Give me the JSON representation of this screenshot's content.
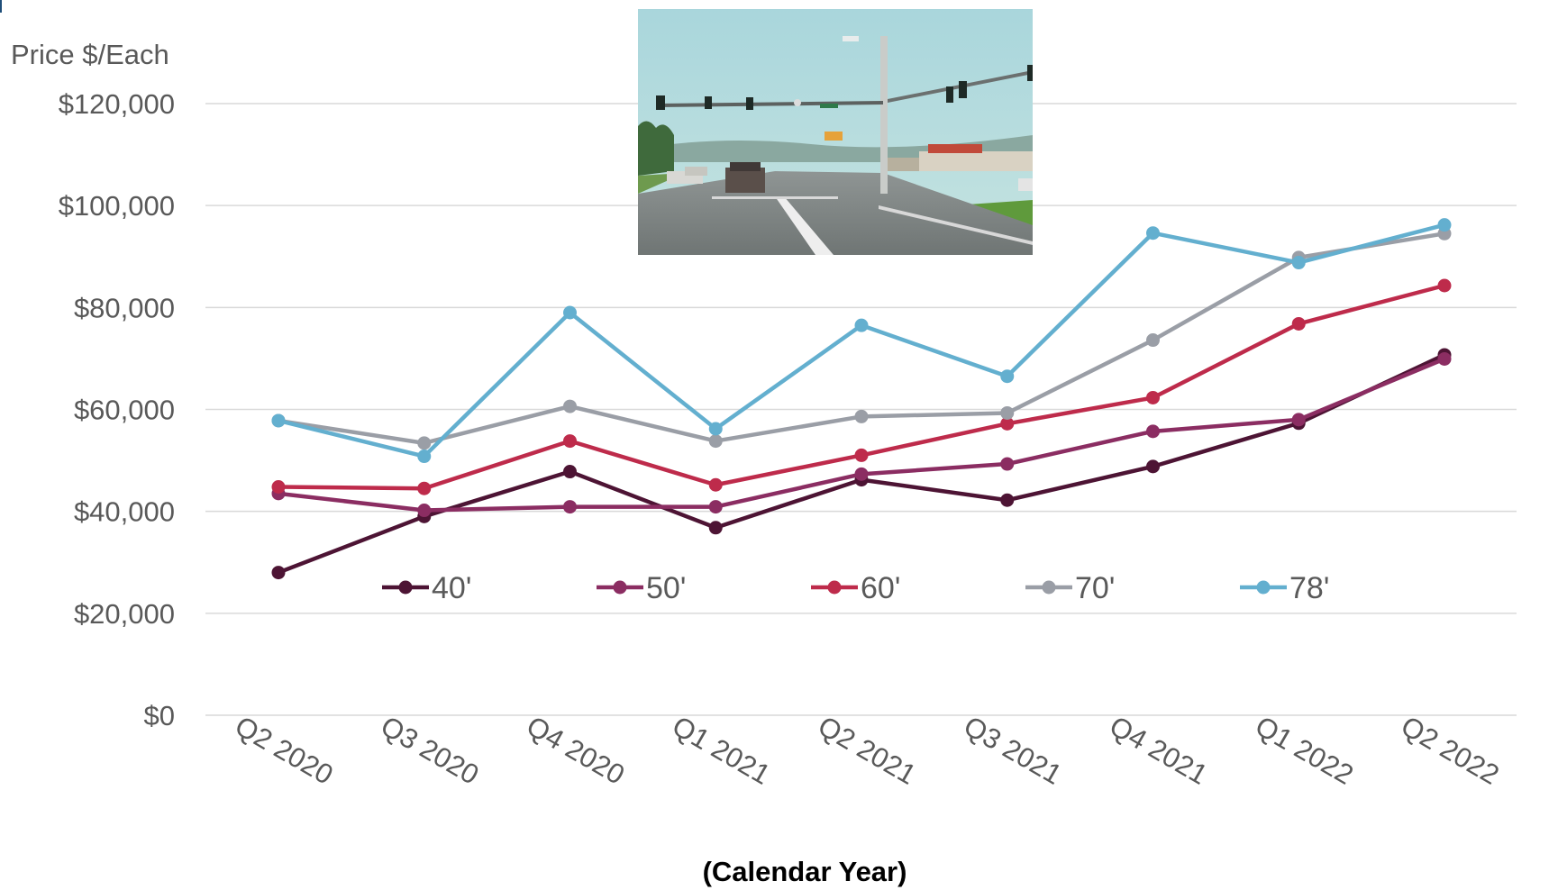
{
  "chart_data": {
    "type": "line",
    "ylabel": "Price $/Each",
    "xlabel": "(Calendar Year)",
    "categories": [
      "Q2 2020",
      "Q3 2020",
      "Q4 2020",
      "Q1 2021",
      "Q2 2021",
      "Q3 2021",
      "Q4 2021",
      "Q1 2022",
      "Q2 2022"
    ],
    "ylim": [
      0,
      120000
    ],
    "yticks": [
      0,
      20000,
      40000,
      60000,
      80000,
      100000,
      120000
    ],
    "ytick_labels": [
      "$0",
      "$20,000",
      "$40,000",
      "$60,000",
      "$80,000",
      "$100,000",
      "$120,000"
    ],
    "grid": true,
    "legend_position": "center",
    "series": [
      {
        "name": "40'",
        "color": "#4d1434",
        "values": [
          28000,
          39000,
          47800,
          36800,
          46200,
          42200,
          48800,
          57300,
          70700
        ]
      },
      {
        "name": "50'",
        "color": "#8b2d62",
        "values": [
          43500,
          40200,
          40900,
          40900,
          47300,
          49300,
          55700,
          58000,
          69900
        ]
      },
      {
        "name": "60'",
        "color": "#be2b4b",
        "values": [
          44800,
          44500,
          53800,
          45200,
          51000,
          57200,
          62300,
          76800,
          84300
        ]
      },
      {
        "name": "70'",
        "color": "#9a9ea6",
        "values": [
          57800,
          53400,
          60600,
          53800,
          58600,
          59300,
          73600,
          89800,
          94500
        ]
      },
      {
        "name": "78'",
        "color": "#63afcf",
        "values": [
          57800,
          50800,
          79000,
          56200,
          76500,
          66500,
          94600,
          88800,
          96200
        ]
      }
    ]
  }
}
